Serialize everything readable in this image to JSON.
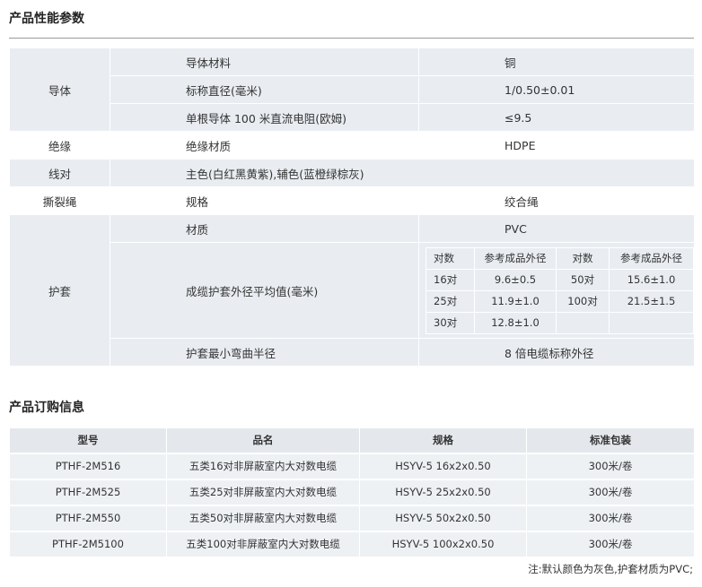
{
  "perf": {
    "title": "产品性能参数",
    "conductor": {
      "label": "导体",
      "rows": [
        [
          "导体材料",
          "铜"
        ],
        [
          "标称直径(毫米)",
          "1/0.50±0.01"
        ],
        [
          "单根导体 100 米直流电阻(欧姆)",
          "≤9.5"
        ]
      ]
    },
    "insulation": {
      "label": "绝缘",
      "name": "绝缘材质",
      "value": "HDPE"
    },
    "pairs": {
      "label": "线对",
      "value": "主色(白红黑黄紫),辅色(蓝橙绿棕灰)"
    },
    "ripcord": {
      "label": "撕裂绳",
      "name": "规格",
      "value": "绞合绳"
    },
    "jacket": {
      "label": "护套",
      "material_name": "材质",
      "material_value": "PVC",
      "od_name": "成缆护套外径平均值(毫米)",
      "od_table": {
        "headers": [
          "对数",
          "参考成品外径",
          "对数",
          "参考成品外径"
        ],
        "rows": [
          [
            "16对",
            "9.6±0.5",
            "50对",
            "15.6±1.0"
          ],
          [
            "25对",
            "11.9±1.0",
            "100对",
            "21.5±1.5"
          ],
          [
            "30对",
            "12.8±1.0",
            "",
            ""
          ]
        ]
      },
      "bend_name": "护套最小弯曲半径",
      "bend_value": "8 倍电缆标称外径"
    }
  },
  "order": {
    "title": "产品订购信息",
    "headers": [
      "型号",
      "品名",
      "规格",
      "标准包装"
    ],
    "rows": [
      [
        "PTHF-2M516",
        "五类16对非屏蔽室内大对数电缆",
        "HSYV-5 16x2x0.50",
        "300米/卷"
      ],
      [
        "PTHF-2M525",
        "五类25对非屏蔽室内大对数电缆",
        "HSYV-5 25x2x0.50",
        "300米/卷"
      ],
      [
        "PTHF-2M550",
        "五类50对非屏蔽室内大对数电缆",
        "HSYV-5 50x2x0.50",
        "300米/卷"
      ],
      [
        "PTHF-2M5100",
        "五类100对非屏蔽室内大对数电缆",
        "HSYV-5 100x2x0.50",
        "300米/卷"
      ]
    ],
    "note": "注:默认颜色为灰色,护套材质为PVC;"
  }
}
